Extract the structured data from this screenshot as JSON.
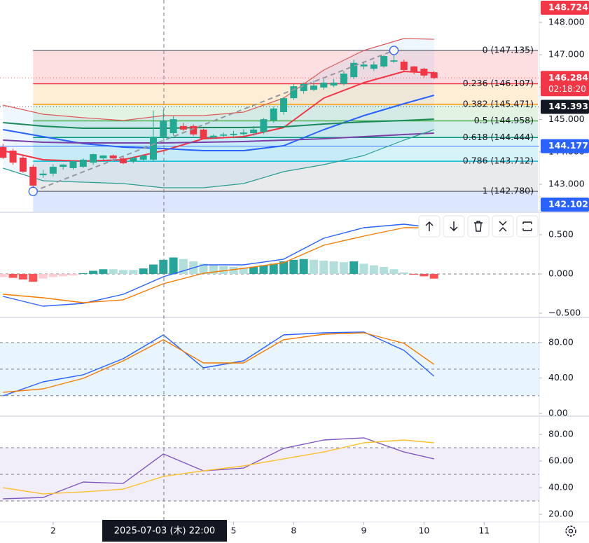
{
  "crosshair_label": "2025-07-03 (木)  22:00",
  "chart_data": [
    {
      "type": "candlestick",
      "xlim": [
        -0.3,
        53.5
      ],
      "xticks": [
        {
          "value": 5,
          "label": "2"
        },
        {
          "value": 23,
          "label": "5"
        },
        {
          "value": 29,
          "label": "8"
        },
        {
          "value": 36,
          "label": "9"
        },
        {
          "value": 42,
          "label": "10"
        },
        {
          "value": 48,
          "label": "11"
        }
      ],
      "ylim": [
        142.156,
        148.693
      ],
      "yticks": [
        {
          "value": 143,
          "label": "143.000"
        },
        {
          "value": 144,
          "label": "144.000"
        },
        {
          "value": 145,
          "label": "145.000"
        },
        {
          "value": 146,
          "label": "146.000"
        },
        {
          "value": 147,
          "label": "147.000"
        },
        {
          "value": 148,
          "label": "148.000"
        }
      ],
      "up_color": "#22ab94",
      "down_color": "#f23645",
      "ohlc": {
        "open": [
          144.15,
          144.04,
          143.82,
          143.54,
          143.28,
          143.33,
          143.54,
          143.5,
          143.54,
          143.67,
          143.8,
          143.89,
          143.8,
          143.7,
          143.76,
          143.76,
          144.47,
          144.58,
          144.8,
          144.8,
          144.69,
          144.45,
          144.5,
          144.52,
          144.55,
          144.58,
          144.62,
          144.97,
          145.23,
          145.66,
          145.88,
          145.92,
          145.99,
          146.05,
          146.1,
          146.31,
          146.64,
          146.57,
          146.64,
          146.79,
          146.79,
          146.64,
          146.57,
          146.46
        ],
        "high": [
          144.25,
          144.1,
          143.9,
          143.6,
          143.45,
          143.62,
          143.62,
          143.7,
          143.8,
          143.95,
          143.9,
          143.92,
          143.85,
          143.85,
          143.9,
          145.28,
          145.3,
          145.1,
          144.9,
          144.85,
          144.72,
          144.55,
          144.6,
          144.65,
          144.7,
          144.8,
          145.05,
          145.4,
          145.7,
          146.1,
          146.15,
          146.2,
          146.25,
          146.25,
          146.5,
          146.85,
          146.8,
          146.8,
          147.0,
          147.135,
          146.85,
          146.65,
          146.6,
          146.5
        ],
        "low": [
          143.78,
          143.6,
          143.35,
          142.78,
          143.2,
          143.25,
          143.45,
          143.45,
          143.5,
          143.6,
          143.75,
          143.75,
          143.62,
          143.65,
          143.7,
          143.7,
          144.4,
          144.5,
          144.65,
          144.5,
          144.4,
          144.4,
          144.45,
          144.45,
          144.5,
          144.5,
          144.55,
          144.9,
          145.15,
          145.6,
          145.8,
          145.88,
          145.92,
          146.0,
          146.05,
          146.25,
          146.55,
          146.5,
          146.6,
          146.75,
          146.5,
          146.4,
          146.3,
          146.25
        ],
        "close": [
          143.82,
          143.67,
          143.39,
          142.96,
          143.33,
          143.54,
          143.61,
          143.72,
          143.76,
          143.93,
          143.89,
          143.8,
          143.65,
          143.82,
          143.89,
          144.47,
          144.97,
          145.01,
          144.69,
          144.54,
          144.41,
          144.5,
          144.54,
          144.56,
          144.6,
          144.69,
          145.01,
          145.34,
          145.66,
          146.03,
          146.1,
          146.05,
          146.14,
          146.14,
          146.42,
          146.75,
          146.7,
          146.7,
          146.96,
          146.83,
          146.53,
          146.46,
          146.36,
          146.28
        ]
      },
      "series": [
        {
          "color": "#f23645",
          "x": [
            0,
            4,
            8,
            12,
            16,
            20,
            24,
            28,
            32,
            36,
            40,
            43
          ],
          "values": [
            144.039,
            143.758,
            143.715,
            143.758,
            144.039,
            144.407,
            144.472,
            144.754,
            145.663,
            146.139,
            146.485,
            146.442
          ]
        },
        {
          "color": "#2962ff",
          "x": [
            0,
            4,
            8,
            12,
            16,
            20,
            24,
            28,
            32,
            36,
            40,
            43
          ],
          "values": [
            144.689,
            144.472,
            144.256,
            144.148,
            144.104,
            144.039,
            144.039,
            144.191,
            144.689,
            145.122,
            145.49,
            145.749
          ]
        },
        {
          "color": "#1b8a5a",
          "x": [
            0,
            4,
            8,
            12,
            16,
            20,
            24,
            28,
            32,
            36,
            40,
            43
          ],
          "values": [
            144.905,
            144.797,
            144.732,
            144.732,
            144.732,
            144.754,
            144.754,
            144.775,
            144.862,
            144.927,
            144.97,
            145.013
          ]
        },
        {
          "color": "#7b3fa8",
          "x": [
            0,
            4,
            8,
            12,
            16,
            20,
            24,
            28,
            32,
            36,
            40,
            43
          ],
          "values": [
            144.364,
            144.299,
            144.277,
            144.277,
            144.277,
            144.299,
            144.32,
            144.364,
            144.407,
            144.472,
            144.537,
            144.58
          ]
        }
      ],
      "bands": {
        "fill": "#2196f3",
        "upper": {
          "color": "#e05a5a",
          "x": [
            0,
            4,
            8,
            12,
            16,
            20,
            24,
            28,
            32,
            36,
            40,
            43
          ],
          "values": [
            145.446,
            145.165,
            145.057,
            144.97,
            145.122,
            145.122,
            145.23,
            145.663,
            146.528,
            147.135,
            147.503,
            147.481
          ]
        },
        "lower": {
          "color": "#2a9d8f",
          "x": [
            0,
            4,
            8,
            12,
            16,
            20,
            24,
            28,
            32,
            36,
            40,
            43
          ],
          "values": [
            143.498,
            143.108,
            143.065,
            143.022,
            142.892,
            142.892,
            143.022,
            143.39,
            143.606,
            143.888,
            144.364,
            144.689
          ]
        }
      },
      "fib": {
        "levels": [
          {
            "label": "0 (147.135)",
            "value": 147.135,
            "color": "#787b86"
          },
          {
            "label": "0.236 (146.107)",
            "value": 146.107,
            "color": "#f23645"
          },
          {
            "label": "0.382 (145.471)",
            "value": 145.471,
            "color": "#ff9800"
          },
          {
            "label": "0.5 (144.958)",
            "value": 144.958,
            "color": "#4caf50"
          },
          {
            "label": "0.618 (144.444)",
            "value": 144.444,
            "color": "#089981"
          },
          {
            "label": "0.786 (143.712)",
            "value": 143.712,
            "color": "#00bcd4"
          },
          {
            "label": "1 (142.780)",
            "value": 142.78,
            "color": "#787b86"
          }
        ]
      },
      "price_badges": [
        {
          "value": 148.724,
          "color": "#f23645"
        },
        {
          "value": 146.284,
          "color": "#f23645",
          "countdown": "02:18:20",
          "line": "dotted"
        },
        {
          "value": 145.393,
          "color": "#131722",
          "line": "dotted"
        },
        {
          "value": 144.177,
          "color": "#2962ff",
          "line": "solid"
        },
        {
          "value": 142.102,
          "color": "#2962ff"
        }
      ]
    },
    {
      "type": "bar",
      "ylim": [
        -0.545,
        0.768
      ],
      "yticks": [
        {
          "value": 0.5,
          "label": "0.500"
        },
        {
          "value": 0,
          "label": "0.000"
        },
        {
          "value": -0.5,
          "label": "−0.500"
        }
      ],
      "levels": [
        0
      ],
      "values": [
        -0.04,
        -0.05,
        -0.07,
        -0.1,
        -0.06,
        -0.04,
        -0.03,
        -0.02,
        0.01,
        0.04,
        0.06,
        0.06,
        0.05,
        0.05,
        0.07,
        0.12,
        0.18,
        0.21,
        0.19,
        0.16,
        0.13,
        0.11,
        0.1,
        0.09,
        0.08,
        0.09,
        0.11,
        0.13,
        0.16,
        0.18,
        0.19,
        0.18,
        0.17,
        0.16,
        0.15,
        0.16,
        0.13,
        0.11,
        0.09,
        0.06,
        0.02,
        -0.01,
        -0.03,
        -0.06
      ],
      "bar_colors": {
        "up_rising": "#26a69a",
        "up_falling": "#b2dfdb",
        "down_falling": "#ff5252",
        "down_rising": "#ffcdd2"
      },
      "series": [
        {
          "color": "#2962ff",
          "x": [
            0,
            4,
            8,
            12,
            16,
            20,
            24,
            28,
            32,
            36,
            40,
            43
          ],
          "values": [
            -0.286,
            -0.411,
            -0.375,
            -0.259,
            -0.036,
            0.116,
            0.116,
            0.188,
            0.455,
            0.589,
            0.634,
            0.589
          ]
        },
        {
          "color": "#f57c00",
          "x": [
            0,
            4,
            8,
            12,
            16,
            20,
            24,
            28,
            32,
            36,
            40,
            43
          ],
          "values": [
            -0.259,
            -0.304,
            -0.366,
            -0.33,
            -0.125,
            0.009,
            0.071,
            0.143,
            0.366,
            0.482,
            0.589,
            0.589
          ]
        }
      ]
    },
    {
      "type": "line",
      "ylim": [
        -1.6,
        106.9
      ],
      "yticks": [
        {
          "value": 80,
          "label": "80.00"
        },
        {
          "value": 40,
          "label": "40.00"
        },
        {
          "value": 0,
          "label": "0.00"
        }
      ],
      "levels": [
        80,
        50,
        20
      ],
      "fill": "#2196f3",
      "series": [
        {
          "color": "#2962ff",
          "x": [
            0,
            4,
            8,
            12,
            16,
            20,
            24,
            28,
            32,
            36,
            40,
            43
          ],
          "values": [
            19.8,
            35.6,
            43.6,
            61.8,
            88.7,
            51.5,
            59.4,
            88.7,
            91.1,
            91.9,
            71.3,
            42.0
          ]
        },
        {
          "color": "#f57c00",
          "x": [
            0,
            4,
            8,
            12,
            16,
            20,
            24,
            28,
            32,
            36,
            40,
            43
          ],
          "values": [
            23.8,
            27.7,
            39.6,
            59.4,
            83.2,
            57.0,
            57.0,
            83.2,
            89.5,
            91.1,
            79.2,
            55.4
          ]
        }
      ]
    },
    {
      "type": "line",
      "ylim": [
        14.2,
        92.1
      ],
      "yticks": [
        {
          "value": 80,
          "label": "80.00"
        },
        {
          "value": 60,
          "label": "60.00"
        },
        {
          "value": 40,
          "label": "40.00"
        },
        {
          "value": 20,
          "label": "20.00"
        }
      ],
      "levels": [
        70,
        50,
        30
      ],
      "fill": "#7e57c2",
      "series": [
        {
          "color": "#7e57c2",
          "x": [
            0,
            4,
            8,
            12,
            16,
            20,
            24,
            28,
            32,
            36,
            40,
            43
          ],
          "values": [
            31.6,
            32.6,
            44.2,
            43.2,
            65.3,
            52.6,
            54.7,
            69.5,
            75.8,
            77.4,
            66.8,
            61.6
          ]
        },
        {
          "color": "#fbc02d",
          "x": [
            0,
            4,
            8,
            12,
            16,
            20,
            24,
            28,
            32,
            36,
            40,
            43
          ],
          "values": [
            40.0,
            35.3,
            36.8,
            38.9,
            48.4,
            52.6,
            56.3,
            61.6,
            66.8,
            73.7,
            75.8,
            73.7
          ]
        }
      ]
    }
  ]
}
